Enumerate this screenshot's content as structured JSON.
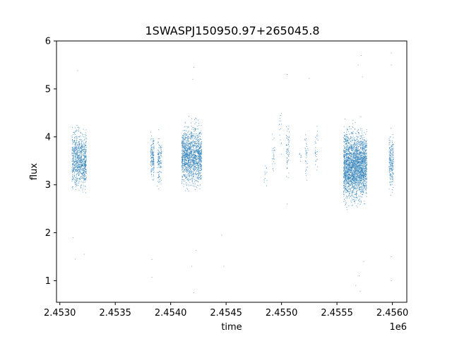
{
  "chart_data": {
    "type": "scatter",
    "title": "1SWASPJ150950.97+265045.8",
    "xlabel": "time",
    "ylabel": "flux",
    "x_offset_label": "1e6",
    "xlim": [
      2.45297,
      2.45613
    ],
    "ylim": [
      0.55,
      6.0
    ],
    "x_ticks": [
      2.453,
      2.4535,
      2.454,
      2.4545,
      2.455,
      2.4555,
      2.456
    ],
    "x_tick_labels": [
      "2.4530",
      "2.4535",
      "2.4540",
      "2.4545",
      "2.4550",
      "2.4555",
      "2.4560"
    ],
    "y_ticks": [
      1,
      2,
      3,
      4,
      5,
      6
    ],
    "y_tick_labels": [
      "1",
      "2",
      "3",
      "4",
      "5",
      "6"
    ],
    "grid": false,
    "marker_color": "#1f77b4",
    "clusters": [
      {
        "x_min": 2.45311,
        "x_max": 2.45324,
        "y_min": 2.55,
        "y_max": 4.5,
        "count": 900,
        "outliers": [
          [
            2.45316,
            5.38
          ],
          [
            2.45314,
            1.45
          ],
          [
            2.45322,
            1.55
          ],
          [
            2.45312,
            1.9
          ]
        ]
      },
      {
        "x_min": 2.45382,
        "x_max": 2.45385,
        "y_min": 2.75,
        "y_max": 4.4,
        "count": 160,
        "outliers": [
          [
            2.45383,
            1.07
          ],
          [
            2.45383,
            1.44
          ]
        ]
      },
      {
        "x_min": 2.45388,
        "x_max": 2.45392,
        "y_min": 2.7,
        "y_max": 4.3,
        "count": 140,
        "outliers": []
      },
      {
        "x_min": 2.4541,
        "x_max": 2.45428,
        "y_min": 2.6,
        "y_max": 4.6,
        "count": 1500,
        "outliers": [
          [
            2.45421,
            5.45
          ],
          [
            2.4542,
            5.2
          ],
          [
            2.45423,
            1.63
          ],
          [
            2.45421,
            0.75
          ],
          [
            2.45419,
            1.3
          ]
        ]
      },
      {
        "x_min": 2.45484,
        "x_max": 2.45487,
        "y_min": 2.6,
        "y_max": 3.8,
        "count": 12,
        "outliers": [
          [
            2.45446,
            1.95
          ],
          [
            2.45448,
            1.3
          ]
        ]
      },
      {
        "x_min": 2.45491,
        "x_max": 2.45494,
        "y_min": 2.9,
        "y_max": 4.5,
        "count": 25,
        "outliers": []
      },
      {
        "x_min": 2.45498,
        "x_max": 2.455,
        "y_min": 3.3,
        "y_max": 5.2,
        "count": 15,
        "outliers": []
      },
      {
        "x_min": 2.45504,
        "x_max": 2.45507,
        "y_min": 2.85,
        "y_max": 4.6,
        "count": 60,
        "outliers": [
          [
            2.45505,
            5.3
          ],
          [
            2.45505,
            2.6
          ]
        ]
      },
      {
        "x_min": 2.45516,
        "x_max": 2.45518,
        "y_min": 3.4,
        "y_max": 3.8,
        "count": 8,
        "outliers": []
      },
      {
        "x_min": 2.45521,
        "x_max": 2.45524,
        "y_min": 2.9,
        "y_max": 4.4,
        "count": 35,
        "outliers": [
          [
            2.45525,
            5.22
          ]
        ]
      },
      {
        "x_min": 2.4553,
        "x_max": 2.45533,
        "y_min": 3.0,
        "y_max": 4.5,
        "count": 30,
        "outliers": []
      },
      {
        "x_min": 2.45556,
        "x_max": 2.45577,
        "y_min": 2.2,
        "y_max": 4.6,
        "count": 2600,
        "outliers": [
          [
            2.45572,
            5.7
          ],
          [
            2.45569,
            5.5
          ],
          [
            2.45573,
            5.25
          ],
          [
            2.4557,
            1.1
          ],
          [
            2.45571,
            0.78
          ],
          [
            2.45567,
            0.9
          ],
          [
            2.45574,
            1.4
          ]
        ]
      },
      {
        "x_min": 2.45597,
        "x_max": 2.45601,
        "y_min": 2.6,
        "y_max": 4.4,
        "count": 220,
        "outliers": [
          [
            2.45599,
            5.75
          ],
          [
            2.45599,
            5.5
          ],
          [
            2.45599,
            1.0
          ],
          [
            2.45599,
            1.5
          ]
        ]
      }
    ]
  }
}
